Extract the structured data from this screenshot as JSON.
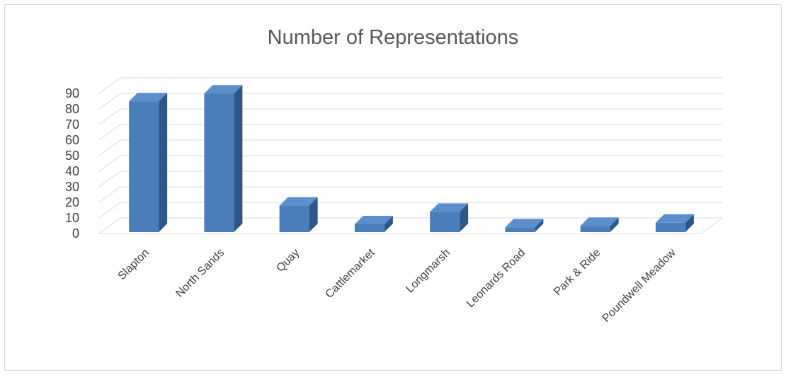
{
  "chart_data": {
    "type": "bar",
    "title": "Number of Representations",
    "categories": [
      "Slapton",
      "North Sands",
      "Quay",
      "Cattlemarket",
      "Longmarsh",
      "Leonards Road",
      "Park & Ride",
      "Poundwell Meadow"
    ],
    "values": [
      84,
      89,
      17,
      5,
      13,
      3,
      4,
      6
    ],
    "yticks": [
      0,
      10,
      20,
      30,
      40,
      50,
      60,
      70,
      80,
      90
    ],
    "ylim": [
      0,
      90
    ],
    "xlabel": "",
    "ylabel": "",
    "grid": true,
    "legend": "none",
    "colors": {
      "bar_front": "#4a7ebb",
      "bar_side": "#2e5688",
      "bar_top": "#5b8fcc",
      "grid": "#d9d9d9"
    }
  }
}
